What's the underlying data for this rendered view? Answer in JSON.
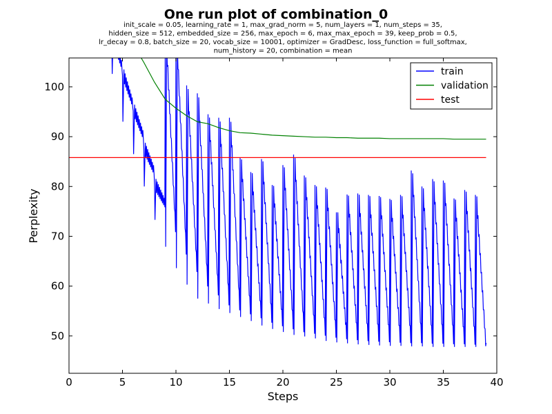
{
  "chart_data": {
    "type": "line",
    "title": "One run plot of combination_0",
    "subtitle_lines": [
      "init_scale = 0.05, learning_rate = 1, max_grad_norm = 5, num_layers = 1, num_steps = 35,",
      "hidden_size = 512, embedded_size = 256, max_epoch = 6, max_max_epoch = 39, keep_prob = 0.5,",
      "lr_decay = 0.8, batch_size = 20, vocab_size = 10001, optimizer = GradDesc, loss_function = full_softmax,",
      "num_history = 20, combination = mean"
    ],
    "xlabel": "Steps",
    "ylabel": "Perplexity",
    "xlim": [
      0,
      40
    ],
    "ylim": [
      42.5,
      105.8
    ],
    "xticks": [
      0,
      5,
      10,
      15,
      20,
      25,
      30,
      35,
      40
    ],
    "yticks": [
      50,
      60,
      70,
      80,
      90,
      100
    ],
    "grid": false,
    "legend_position": "top-right",
    "series": [
      {
        "name": "train",
        "color": "#0000ff",
        "epoch_starts": [
          4,
          5,
          6,
          7,
          8,
          9,
          10,
          11,
          12,
          13,
          14,
          15,
          16,
          17,
          18,
          19,
          20,
          21,
          22,
          23,
          24,
          25,
          26,
          27,
          28,
          29,
          30,
          31,
          32,
          33,
          34,
          35,
          36,
          37,
          38
        ],
        "epoch_spikes": [
          102.6,
          93,
          86.5,
          80,
          73.3,
          67.9,
          63.6,
          60.3,
          57.5,
          56.5,
          55.4,
          54.6,
          53.8,
          53,
          52.1,
          51.4,
          50.8,
          50.2,
          49.9,
          49.5,
          49,
          48.7,
          48.5,
          48.3,
          48.2,
          48.1,
          48,
          48,
          47.9,
          47.9,
          47.8,
          47.8,
          47.8,
          47.8,
          47.8
        ],
        "epoch_peaks": [
          110,
          102.3,
          95.2,
          87.5,
          80.2,
          110,
          110,
          100.3,
          98.7,
          94.5,
          93.8,
          93.8,
          85.8,
          82.9,
          85.5,
          80.3,
          84.3,
          86.4,
          82.2,
          80.3,
          79.8,
          74.8,
          78.4,
          78.6,
          78.3,
          78.1,
          77.5,
          78.3,
          83.2,
          80,
          81.5,
          81.2,
          77.6,
          79.3,
          78.3
        ],
        "epoch_ends": [
          104,
          96.5,
          90,
          83,
          76.5,
          71.5,
          67,
          63.5,
          60.6,
          58.8,
          56.8,
          55.8,
          55,
          54.2,
          53.3,
          52.6,
          52,
          51.4,
          51.1,
          50.7,
          50.3,
          50,
          49.8,
          49.6,
          49.5,
          49.4,
          49.3,
          49.2,
          49.2,
          49.1,
          49.1,
          49,
          49,
          48.9,
          48.6
        ]
      },
      {
        "name": "validation",
        "color": "#008000",
        "x": [
          6,
          7,
          8,
          9,
          10,
          11,
          12,
          13,
          14,
          15,
          16,
          17,
          18,
          19,
          20,
          21,
          22,
          23,
          24,
          25,
          26,
          27,
          28,
          29,
          30,
          31,
          32,
          33,
          34,
          35,
          36,
          37,
          38,
          39
        ],
        "y": [
          108.5,
          104.9,
          100.9,
          97.5,
          95.7,
          94.2,
          93,
          92.6,
          91.8,
          91.2,
          90.8,
          90.7,
          90.5,
          90.3,
          90.2,
          90.1,
          90,
          89.9,
          89.9,
          89.8,
          89.8,
          89.7,
          89.7,
          89.7,
          89.6,
          89.6,
          89.6,
          89.6,
          89.6,
          89.6,
          89.5,
          89.5,
          89.5,
          89.5
        ]
      },
      {
        "name": "test",
        "color": "#ff0000",
        "x": [
          0,
          39
        ],
        "y": [
          85.8,
          85.8
        ]
      }
    ]
  }
}
